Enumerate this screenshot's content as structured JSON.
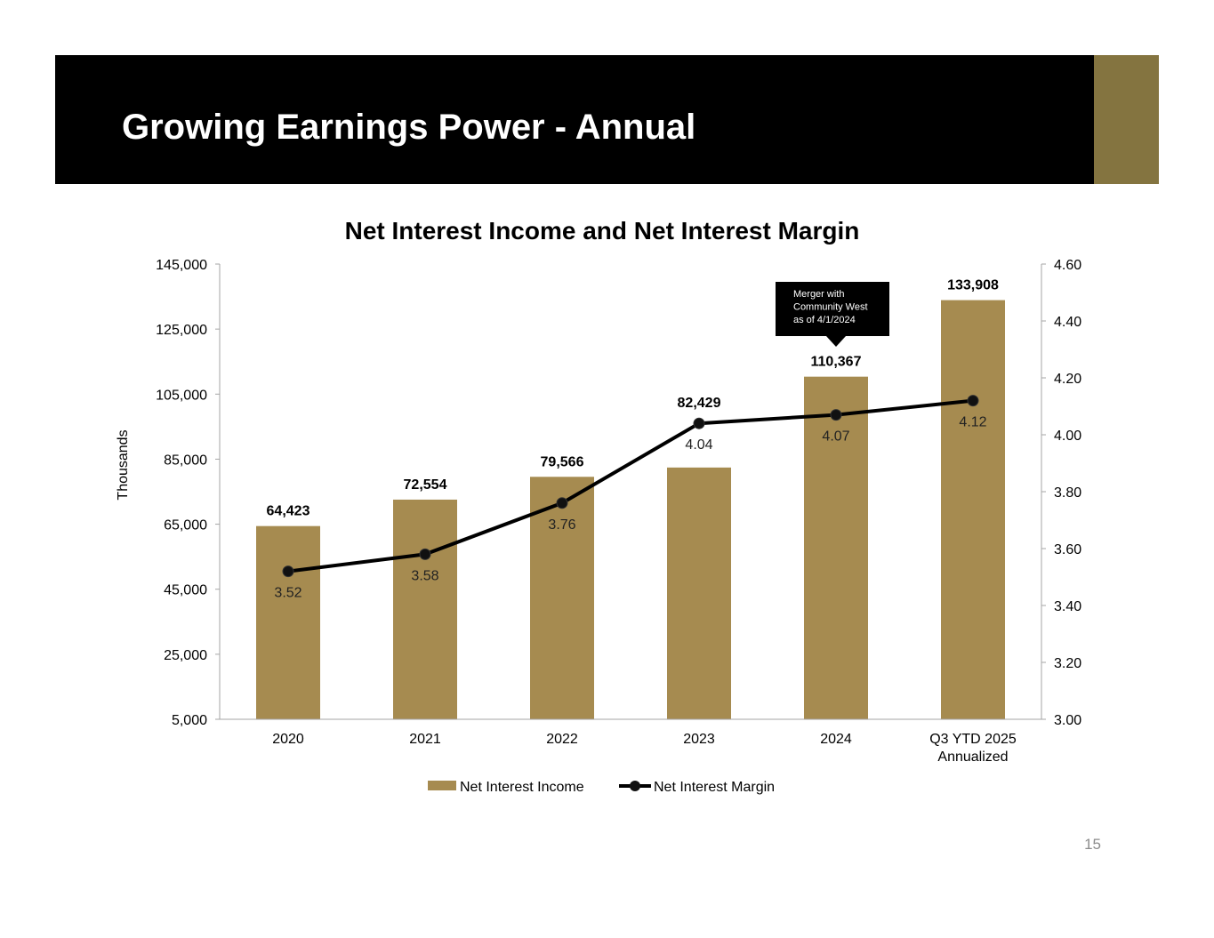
{
  "page": {
    "title": "Growing Earnings Power - Annual",
    "page_number": "15"
  },
  "colors": {
    "title_band": "#000000",
    "accent": "#847440",
    "bar": "#A68B50",
    "line": "#000000"
  },
  "chart_data": {
    "type": "bar",
    "title": "Net Interest Income and Net Interest Margin",
    "categories": [
      "2020",
      "2021",
      "2022",
      "2023",
      "2024",
      "Q3 YTD 2025 Annualized"
    ],
    "series": [
      {
        "name": "Net Interest Income",
        "type": "bar",
        "axis": "left",
        "values": [
          64423,
          72554,
          79566,
          82429,
          110367,
          133908
        ],
        "data_labels": [
          "64,423",
          "72,554",
          "79,566",
          "82,429",
          "110,367",
          "133,908"
        ]
      },
      {
        "name": "Net Interest Margin",
        "type": "line",
        "axis": "right",
        "values": [
          3.52,
          3.58,
          3.76,
          4.04,
          4.07,
          4.12
        ],
        "data_labels": [
          "3.52",
          "3.58",
          "3.76",
          "4.04",
          "4.07",
          "4.12"
        ]
      }
    ],
    "ylabel": "Thousands",
    "ylim": [
      5000,
      145000
    ],
    "y_ticks": [
      "5,000",
      "25,000",
      "45,000",
      "65,000",
      "85,000",
      "105,000",
      "125,000",
      "145,000"
    ],
    "y2lim": [
      3.0,
      4.6
    ],
    "y2_ticks": [
      "3.00",
      "3.20",
      "3.40",
      "3.60",
      "3.80",
      "4.00",
      "4.20",
      "4.40",
      "4.60"
    ],
    "legend_position": "bottom",
    "grid": false,
    "annotation": {
      "category": "2024",
      "lines": [
        "Merger with",
        "Community West",
        "as of 4/1/2024"
      ]
    }
  }
}
